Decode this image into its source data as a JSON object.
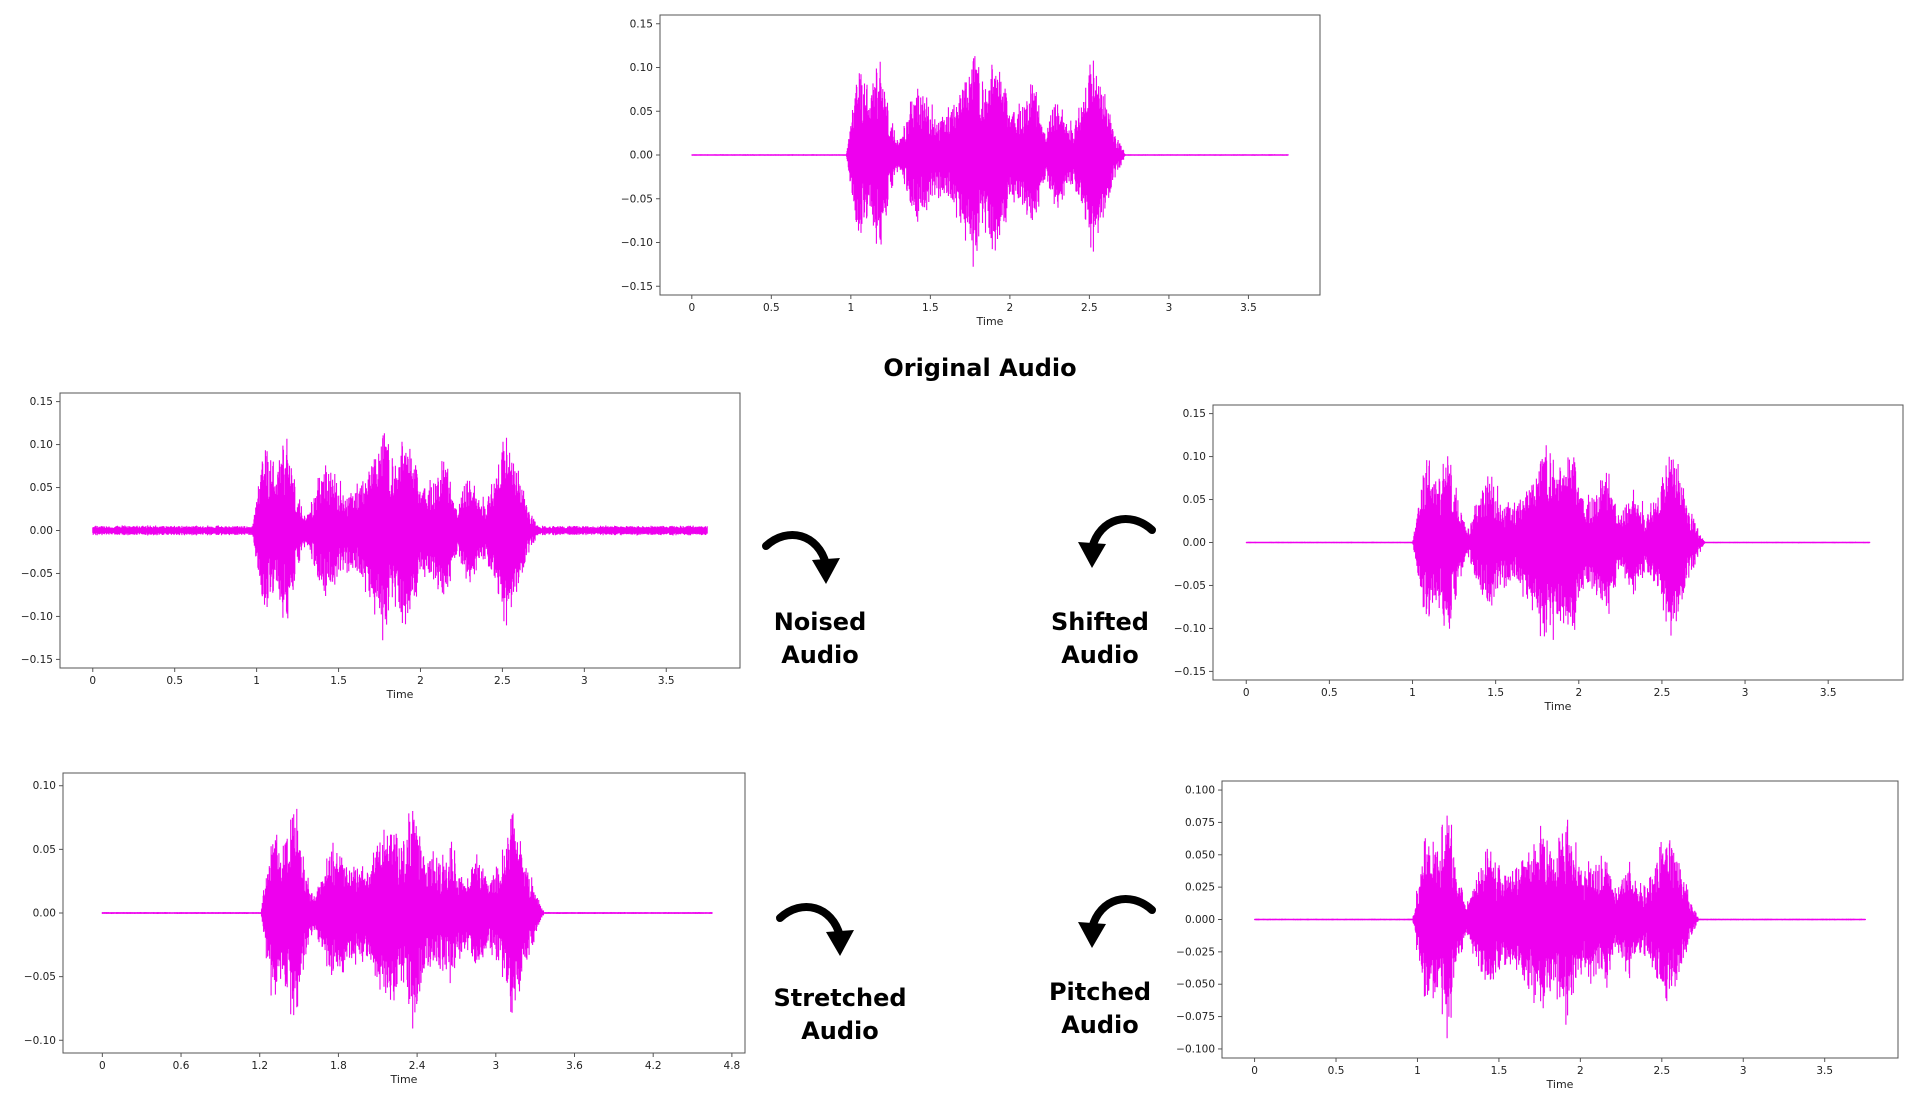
{
  "colors": {
    "waveform": "#ee00ee",
    "frame": "#555555",
    "text": "#000000",
    "background": "#ffffff"
  },
  "captions": {
    "original": "Original Audio",
    "noised": "Noised\nAudio",
    "shifted": "Shifted\nAudio",
    "stretched": "Stretched\nAudio",
    "pitched": "Pitched\nAudio"
  },
  "icons": {
    "noised_arrow": "curved-arrow-down-right-icon",
    "shifted_arrow": "curved-arrow-down-left-icon",
    "stretched_arrow": "curved-arrow-down-right-icon",
    "pitched_arrow": "curved-arrow-down-left-icon"
  },
  "chart_data": [
    {
      "id": "original",
      "type": "line",
      "xlabel": "Time",
      "xlim": [
        -0.2,
        3.95
      ],
      "ylim": [
        -0.16,
        0.16
      ],
      "xticks": [
        0,
        0.5,
        1,
        1.5,
        2,
        2.5,
        3,
        3.5
      ],
      "xtick_labels": [
        "0",
        "0.5",
        "1",
        "1.5",
        "2",
        "2.5",
        "3",
        "3.5"
      ],
      "yticks": [
        0.15,
        0.1,
        0.05,
        0.0,
        -0.05,
        -0.1,
        -0.15
      ],
      "ytick_labels": [
        "0.15",
        "0.10",
        "0.05",
        "0.00",
        "−0.05",
        "−0.10",
        "−0.15"
      ],
      "duration": 3.75,
      "noise_floor": 0.0008,
      "envelope": [
        [
          1.0,
          0.04
        ],
        [
          1.05,
          0.12
        ],
        [
          1.12,
          0.08
        ],
        [
          1.18,
          0.14
        ],
        [
          1.25,
          0.05
        ],
        [
          1.3,
          0.015
        ],
        [
          1.42,
          0.09
        ],
        [
          1.5,
          0.06
        ],
        [
          1.58,
          0.05
        ],
        [
          1.68,
          0.08
        ],
        [
          1.78,
          0.15
        ],
        [
          1.85,
          0.09
        ],
        [
          1.92,
          0.13
        ],
        [
          2.0,
          0.06
        ],
        [
          2.08,
          0.07
        ],
        [
          2.15,
          0.09
        ],
        [
          2.22,
          0.03
        ],
        [
          2.3,
          0.07
        ],
        [
          2.38,
          0.04
        ],
        [
          2.45,
          0.06
        ],
        [
          2.52,
          0.13
        ],
        [
          2.6,
          0.07
        ],
        [
          2.68,
          0.02
        ]
      ]
    },
    {
      "id": "noised",
      "type": "line",
      "xlabel": "Time",
      "xlim": [
        -0.2,
        3.95
      ],
      "ylim": [
        -0.16,
        0.16
      ],
      "xticks": [
        0,
        0.5,
        1,
        1.5,
        2,
        2.5,
        3,
        3.5
      ],
      "xtick_labels": [
        "0",
        "0.5",
        "1",
        "1.5",
        "2",
        "2.5",
        "3",
        "3.5"
      ],
      "yticks": [
        0.15,
        0.1,
        0.05,
        0.0,
        -0.05,
        -0.1,
        -0.15
      ],
      "ytick_labels": [
        "0.15",
        "0.10",
        "0.05",
        "0.00",
        "−0.05",
        "−0.10",
        "−0.15"
      ],
      "duration": 3.75,
      "noise_floor": 0.006,
      "envelope": [
        [
          1.0,
          0.04
        ],
        [
          1.05,
          0.12
        ],
        [
          1.12,
          0.08
        ],
        [
          1.18,
          0.14
        ],
        [
          1.25,
          0.05
        ],
        [
          1.3,
          0.015
        ],
        [
          1.42,
          0.09
        ],
        [
          1.5,
          0.06
        ],
        [
          1.58,
          0.05
        ],
        [
          1.68,
          0.08
        ],
        [
          1.78,
          0.15
        ],
        [
          1.85,
          0.09
        ],
        [
          1.92,
          0.13
        ],
        [
          2.0,
          0.06
        ],
        [
          2.08,
          0.07
        ],
        [
          2.15,
          0.09
        ],
        [
          2.22,
          0.03
        ],
        [
          2.3,
          0.07
        ],
        [
          2.38,
          0.04
        ],
        [
          2.45,
          0.06
        ],
        [
          2.52,
          0.13
        ],
        [
          2.6,
          0.07
        ],
        [
          2.68,
          0.02
        ]
      ]
    },
    {
      "id": "shifted",
      "type": "line",
      "xlabel": "Time",
      "xlim": [
        -0.2,
        3.95
      ],
      "ylim": [
        -0.16,
        0.16
      ],
      "xticks": [
        0,
        0.5,
        1,
        1.5,
        2,
        2.5,
        3,
        3.5
      ],
      "xtick_labels": [
        "0",
        "0.5",
        "1",
        "1.5",
        "2",
        "2.5",
        "3",
        "3.5"
      ],
      "yticks": [
        0.15,
        0.1,
        0.05,
        0.0,
        -0.05,
        -0.1,
        -0.15
      ],
      "ytick_labels": [
        "0.15",
        "0.10",
        "0.05",
        "0.00",
        "−0.05",
        "−0.10",
        "−0.15"
      ],
      "duration": 3.75,
      "noise_floor": 0.0008,
      "envelope": [
        [
          1.03,
          0.04
        ],
        [
          1.08,
          0.12
        ],
        [
          1.15,
          0.08
        ],
        [
          1.21,
          0.14
        ],
        [
          1.28,
          0.05
        ],
        [
          1.33,
          0.015
        ],
        [
          1.45,
          0.09
        ],
        [
          1.53,
          0.06
        ],
        [
          1.61,
          0.05
        ],
        [
          1.71,
          0.08
        ],
        [
          1.81,
          0.15
        ],
        [
          1.88,
          0.09
        ],
        [
          1.95,
          0.13
        ],
        [
          2.03,
          0.06
        ],
        [
          2.11,
          0.07
        ],
        [
          2.18,
          0.09
        ],
        [
          2.25,
          0.03
        ],
        [
          2.33,
          0.07
        ],
        [
          2.41,
          0.04
        ],
        [
          2.48,
          0.06
        ],
        [
          2.55,
          0.13
        ],
        [
          2.63,
          0.07
        ],
        [
          2.71,
          0.02
        ]
      ]
    },
    {
      "id": "stretched",
      "type": "line",
      "xlabel": "Time",
      "xlim": [
        -0.3,
        4.9
      ],
      "ylim": [
        -0.11,
        0.11
      ],
      "xticks": [
        0,
        0.6,
        1.2,
        1.8,
        2.4,
        3.0,
        3.6,
        4.2,
        4.8
      ],
      "xtick_labels": [
        "0",
        "0.6",
        "1.2",
        "1.8",
        "2.4",
        "3",
        "3.6",
        "4.2",
        "4.8"
      ],
      "yticks": [
        0.1,
        0.05,
        0.0,
        -0.05,
        -0.1
      ],
      "ytick_labels": [
        "0.10",
        "0.05",
        "0.00",
        "−0.05",
        "−0.10"
      ],
      "duration": 4.65,
      "noise_floor": 0.0008,
      "envelope": [
        [
          1.24,
          0.03
        ],
        [
          1.3,
          0.08
        ],
        [
          1.39,
          0.06
        ],
        [
          1.46,
          0.1
        ],
        [
          1.55,
          0.04
        ],
        [
          1.61,
          0.015
        ],
        [
          1.76,
          0.06
        ],
        [
          1.86,
          0.045
        ],
        [
          1.96,
          0.04
        ],
        [
          2.08,
          0.06
        ],
        [
          2.21,
          0.08
        ],
        [
          2.29,
          0.06
        ],
        [
          2.38,
          0.1
        ],
        [
          2.48,
          0.05
        ],
        [
          2.58,
          0.05
        ],
        [
          2.66,
          0.06
        ],
        [
          2.75,
          0.03
        ],
        [
          2.85,
          0.05
        ],
        [
          2.95,
          0.03
        ],
        [
          3.04,
          0.05
        ],
        [
          3.12,
          0.09
        ],
        [
          3.22,
          0.05
        ],
        [
          3.32,
          0.015
        ]
      ]
    },
    {
      "id": "pitched",
      "type": "line",
      "xlabel": "Time",
      "xlim": [
        -0.2,
        3.95
      ],
      "ylim": [
        -0.107,
        0.107
      ],
      "xticks": [
        0,
        0.5,
        1,
        1.5,
        2,
        2.5,
        3,
        3.5
      ],
      "xtick_labels": [
        "0",
        "0.5",
        "1",
        "1.5",
        "2",
        "2.5",
        "3",
        "3.5"
      ],
      "yticks": [
        0.1,
        0.075,
        0.05,
        0.025,
        0.0,
        -0.025,
        -0.05,
        -0.075,
        -0.1
      ],
      "ytick_labels": [
        "0.100",
        "0.075",
        "0.050",
        "0.025",
        "0.000",
        "−0.025",
        "−0.050",
        "−0.075",
        "−0.100"
      ],
      "duration": 3.75,
      "noise_floor": 0.0006,
      "envelope": [
        [
          1.0,
          0.03
        ],
        [
          1.05,
          0.08
        ],
        [
          1.12,
          0.06
        ],
        [
          1.18,
          0.1
        ],
        [
          1.25,
          0.04
        ],
        [
          1.3,
          0.012
        ],
        [
          1.42,
          0.065
        ],
        [
          1.5,
          0.045
        ],
        [
          1.58,
          0.04
        ],
        [
          1.68,
          0.06
        ],
        [
          1.78,
          0.08
        ],
        [
          1.85,
          0.065
        ],
        [
          1.92,
          0.09
        ],
        [
          2.0,
          0.05
        ],
        [
          2.08,
          0.05
        ],
        [
          2.15,
          0.06
        ],
        [
          2.22,
          0.025
        ],
        [
          2.3,
          0.05
        ],
        [
          2.38,
          0.03
        ],
        [
          2.45,
          0.045
        ],
        [
          2.52,
          0.08
        ],
        [
          2.6,
          0.05
        ],
        [
          2.68,
          0.015
        ]
      ]
    }
  ]
}
